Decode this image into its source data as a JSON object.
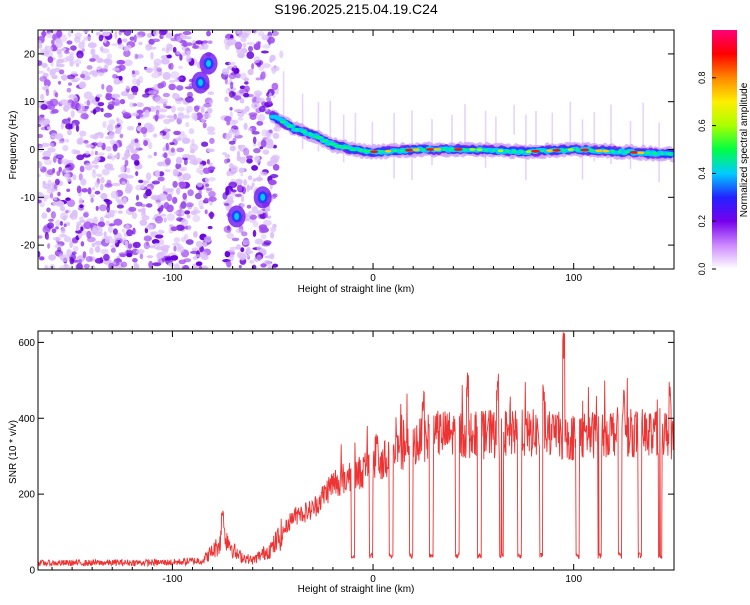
{
  "title": "S196.2025.215.04.19.C24",
  "chart_data": [
    {
      "type": "heatmap",
      "xlabel": "Height of straight line (km)",
      "ylabel": "Frequency (Hz)",
      "xlim": [
        -167,
        150
      ],
      "ylim": [
        -25,
        25
      ],
      "x_ticks": [
        -100,
        0,
        100
      ],
      "y_ticks": [
        -20,
        -10,
        0,
        10,
        20
      ],
      "colorbar": {
        "label": "Normalized spectral amplitude",
        "range": [
          0,
          1
        ],
        "ticks": [
          "0.0",
          "0.2",
          "0.4",
          "0.6",
          "0.8"
        ],
        "tick_values": [
          0.0,
          0.2,
          0.4,
          0.6,
          0.8
        ],
        "colors": [
          "#ffffff",
          "#cc88ff",
          "#7700ee",
          "#2222ff",
          "#00ccff",
          "#00ff44",
          "#aaff00",
          "#ffee00",
          "#ff8800",
          "#ff0000",
          "#ff0077"
        ]
      },
      "ridge": [
        {
          "x": -50,
          "y": 7
        },
        {
          "x": -40,
          "y": 4.5
        },
        {
          "x": -30,
          "y": 3
        },
        {
          "x": -20,
          "y": 1
        },
        {
          "x": -10,
          "y": 0
        },
        {
          "x": 0,
          "y": -0.5
        },
        {
          "x": 25,
          "y": 0
        },
        {
          "x": 50,
          "y": 0
        },
        {
          "x": 75,
          "y": -0.5
        },
        {
          "x": 100,
          "y": 0
        },
        {
          "x": 125,
          "y": -0.5
        },
        {
          "x": 150,
          "y": -1
        }
      ],
      "features": [
        {
          "x": -82,
          "y": 18
        },
        {
          "x": -86,
          "y": 14
        },
        {
          "x": -55,
          "y": -10
        },
        {
          "x": -68,
          "y": -14
        }
      ]
    },
    {
      "type": "line",
      "xlabel": "Height of straight line (km)",
      "ylabel": "SNR (10 * v/v)",
      "xlim": [
        -167,
        150
      ],
      "ylim": [
        0,
        630
      ],
      "x_ticks": [
        -100,
        0,
        100
      ],
      "y_ticks": [
        0,
        200,
        400,
        600
      ],
      "series": [
        {
          "color": "#ee3333",
          "envelope": [
            {
              "x": -167,
              "y": 18
            },
            {
              "x": -100,
              "y": 20
            },
            {
              "x": -85,
              "y": 25
            },
            {
              "x": -78,
              "y": 60
            },
            {
              "x": -74,
              "y": 95
            },
            {
              "x": -68,
              "y": 40
            },
            {
              "x": -60,
              "y": 25
            },
            {
              "x": -50,
              "y": 60
            },
            {
              "x": -40,
              "y": 140
            },
            {
              "x": -30,
              "y": 160
            },
            {
              "x": -20,
              "y": 230
            },
            {
              "x": -10,
              "y": 250
            },
            {
              "x": 0,
              "y": 270
            },
            {
              "x": 10,
              "y": 310
            },
            {
              "x": 20,
              "y": 330
            },
            {
              "x": 30,
              "y": 360
            },
            {
              "x": 50,
              "y": 355
            },
            {
              "x": 80,
              "y": 360
            },
            {
              "x": 100,
              "y": 350
            },
            {
              "x": 120,
              "y": 365
            },
            {
              "x": 150,
              "y": 355
            }
          ],
          "spikes": [
            {
              "x": -75,
              "y": 160
            },
            {
              "x": -37,
              "y": 170
            },
            {
              "x": 2,
              "y": 370
            },
            {
              "x": 25,
              "y": 470
            },
            {
              "x": 47,
              "y": 530
            },
            {
              "x": 62,
              "y": 520
            },
            {
              "x": 85,
              "y": 490
            },
            {
              "x": 95,
              "y": 630
            },
            {
              "x": 125,
              "y": 500
            },
            {
              "x": 148,
              "y": 500
            }
          ],
          "dips": [
            -10,
            -1,
            9,
            19,
            29,
            42,
            53,
            64,
            73,
            84,
            102,
            113,
            123,
            133,
            143
          ],
          "dip_floor": 30
        }
      ]
    }
  ]
}
